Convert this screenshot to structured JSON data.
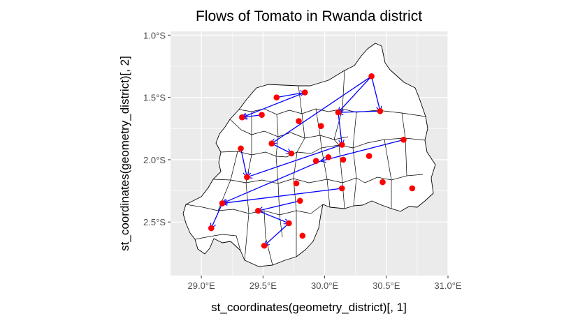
{
  "chart_data": {
    "type": "scatter",
    "title": "Flows of Tomato in Rwanda district",
    "xlabel": "st_coordinates(geometry_district)[, 1]",
    "ylabel": "st_coordinates(geometry_district)[, 2]",
    "xlim": [
      28.75,
      31.0
    ],
    "ylim": [
      -2.93,
      -0.97
    ],
    "x_ticks": [
      29.0,
      29.5,
      30.0,
      30.5,
      31.0
    ],
    "x_tick_labels": [
      "29.0°E",
      "29.5°E",
      "30.0°E",
      "30.5°E",
      "31.0°E"
    ],
    "y_ticks": [
      -1.0,
      -1.5,
      -2.0,
      -2.5
    ],
    "y_tick_labels": [
      "1.0°S",
      "1.5°S",
      "2.0°S",
      "2.5°S"
    ],
    "grid": true,
    "colors": {
      "panel_background": "#ebebeb",
      "grid": "#ffffff",
      "map_fill": "#ffffff",
      "map_border": "#000000",
      "points": "#ff0000",
      "arrows": "#0000ff"
    },
    "series": [
      {
        "type": "points",
        "x": [
          30.38,
          30.45,
          30.11,
          29.84,
          29.61,
          29.33,
          29.49,
          29.79,
          29.97,
          29.57,
          29.73,
          29.32,
          29.37,
          29.93,
          30.14,
          30.03,
          30.15,
          30.36,
          30.64,
          29.77,
          30.47,
          30.71,
          30.14,
          29.8,
          29.46,
          29.17,
          29.71,
          29.08,
          29.51,
          29.82
        ],
        "y": [
          -1.33,
          -1.61,
          -1.62,
          -1.46,
          -1.5,
          -1.66,
          -1.64,
          -1.69,
          -1.73,
          -1.87,
          -1.95,
          -1.91,
          -2.14,
          -2.01,
          -1.88,
          -1.98,
          -2.0,
          -1.97,
          -1.84,
          -2.19,
          -2.18,
          -2.23,
          -2.23,
          -2.33,
          -2.41,
          -2.35,
          -2.51,
          -2.55,
          -2.69,
          -2.61
        ]
      }
    ],
    "flows": [
      {
        "from": [
          30.38,
          -1.33
        ],
        "to": [
          30.11,
          -1.62
        ]
      },
      {
        "from": [
          30.38,
          -1.33
        ],
        "to": [
          30.45,
          -1.61
        ]
      },
      {
        "from": [
          30.45,
          -1.61
        ],
        "to": [
          30.11,
          -1.62
        ]
      },
      {
        "from": [
          30.38,
          -1.33
        ],
        "to": [
          29.57,
          -1.87
        ]
      },
      {
        "from": [
          30.11,
          -1.62
        ],
        "to": [
          30.14,
          -1.88
        ]
      },
      {
        "from": [
          29.61,
          -1.5
        ],
        "to": [
          29.84,
          -1.46
        ]
      },
      {
        "from": [
          29.84,
          -1.46
        ],
        "to": [
          29.33,
          -1.66
        ]
      },
      {
        "from": [
          29.49,
          -1.64
        ],
        "to": [
          29.33,
          -1.66
        ]
      },
      {
        "from": [
          30.64,
          -1.84
        ],
        "to": [
          29.97,
          -2.01
        ]
      },
      {
        "from": [
          30.14,
          -1.88
        ],
        "to": [
          29.37,
          -2.14
        ]
      },
      {
        "from": [
          29.32,
          -1.91
        ],
        "to": [
          29.37,
          -2.14
        ]
      },
      {
        "from": [
          29.57,
          -1.87
        ],
        "to": [
          29.73,
          -1.95
        ]
      },
      {
        "from": [
          29.97,
          -2.01
        ],
        "to": [
          29.17,
          -2.35
        ]
      },
      {
        "from": [
          30.14,
          -2.23
        ],
        "to": [
          29.17,
          -2.35
        ]
      },
      {
        "from": [
          29.8,
          -2.33
        ],
        "to": [
          29.46,
          -2.41
        ]
      },
      {
        "from": [
          29.71,
          -2.51
        ],
        "to": [
          29.51,
          -2.69
        ]
      },
      {
        "from": [
          29.46,
          -2.41
        ],
        "to": [
          29.71,
          -2.51
        ]
      },
      {
        "from": [
          29.17,
          -2.35
        ],
        "to": [
          29.08,
          -2.55
        ]
      }
    ]
  }
}
